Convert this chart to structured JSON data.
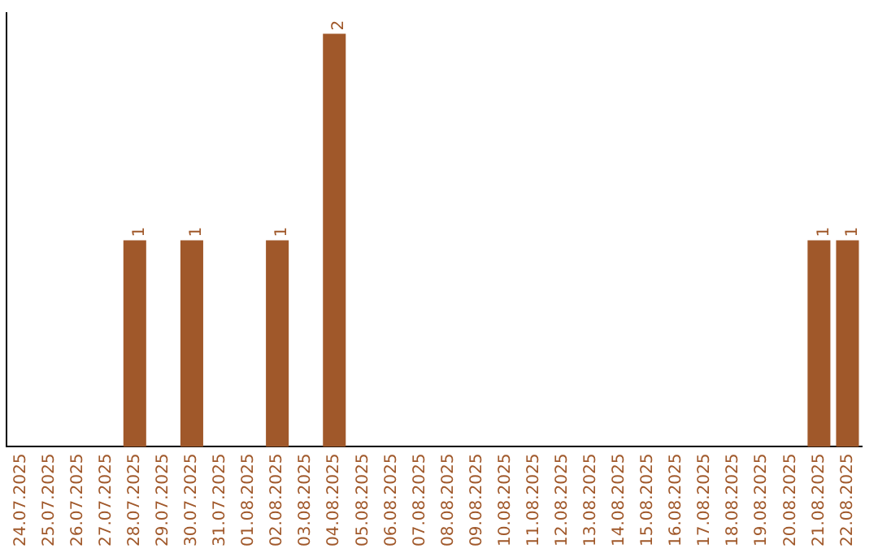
{
  "chart_data": {
    "type": "bar",
    "categories": [
      "24.07.2025",
      "25.07.2025",
      "26.07.2025",
      "27.07.2025",
      "28.07.2025",
      "29.07.2025",
      "30.07.2025",
      "31.07.2025",
      "01.08.2025",
      "02.08.2025",
      "03.08.2025",
      "04.08.2025",
      "05.08.2025",
      "06.08.2025",
      "07.08.2025",
      "08.08.2025",
      "09.08.2025",
      "10.08.2025",
      "11.08.2025",
      "12.08.2025",
      "13.08.2025",
      "14.08.2025",
      "15.08.2025",
      "16.08.2025",
      "17.08.2025",
      "18.08.2025",
      "19.08.2025",
      "20.08.2025",
      "21.08.2025",
      "22.08.2025"
    ],
    "values": [
      0,
      0,
      0,
      0,
      1,
      0,
      1,
      0,
      0,
      1,
      0,
      2,
      0,
      0,
      0,
      0,
      0,
      0,
      0,
      0,
      0,
      0,
      0,
      0,
      0,
      0,
      0,
      0,
      1,
      1
    ],
    "value_labels": [
      null,
      null,
      null,
      null,
      "1",
      null,
      "1",
      null,
      null,
      "1",
      null,
      "2",
      null,
      null,
      null,
      null,
      null,
      null,
      null,
      null,
      null,
      null,
      null,
      null,
      null,
      null,
      null,
      null,
      "1",
      "1"
    ],
    "color": "#a0582a",
    "ylim": [
      0,
      2.1
    ],
    "tick_labels": "x",
    "grid": false,
    "legend": false
  }
}
